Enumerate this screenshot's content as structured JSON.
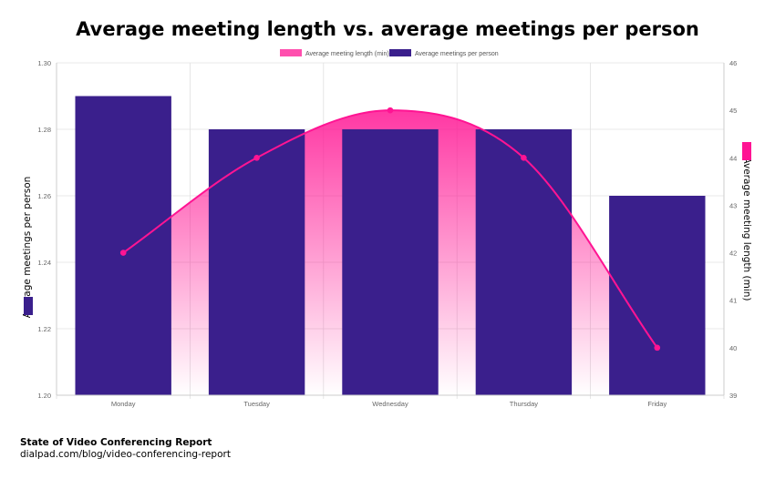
{
  "title": "Average meeting length vs. average meetings per person",
  "footer": {
    "title": "State of Video Conferencing Report",
    "url": "dialpad.com/blog/video-conferencing-report"
  },
  "colors": {
    "bar": "#3a1f8c",
    "line": "#ff1493",
    "grid": "#e0e0e0"
  },
  "chart_data": {
    "type": "bar",
    "categories": [
      "Monday",
      "Tuesday",
      "Wednesday",
      "Thursday",
      "Friday"
    ],
    "series": [
      {
        "name": "Average meetings per person",
        "type": "bar",
        "axis": "left",
        "values": [
          1.29,
          1.28,
          1.28,
          1.28,
          1.26
        ]
      },
      {
        "name": "Average meeting length (min)",
        "type": "line",
        "axis": "right",
        "values": [
          42,
          44,
          45,
          44,
          40
        ]
      }
    ],
    "ylabel_left": "Average meetings per person",
    "ylabel_right": "Average meeting length (min)",
    "ylim_left": [
      1.2,
      1.3
    ],
    "ylim_right": [
      39,
      46
    ],
    "yticks_left": [
      "1.20",
      "1.22",
      "1.24",
      "1.26",
      "1.28",
      "1.30"
    ],
    "yticks_right": [
      "39",
      "40",
      "41",
      "42",
      "43",
      "44",
      "45",
      "46"
    ],
    "legend": "top-center",
    "grid": true
  }
}
